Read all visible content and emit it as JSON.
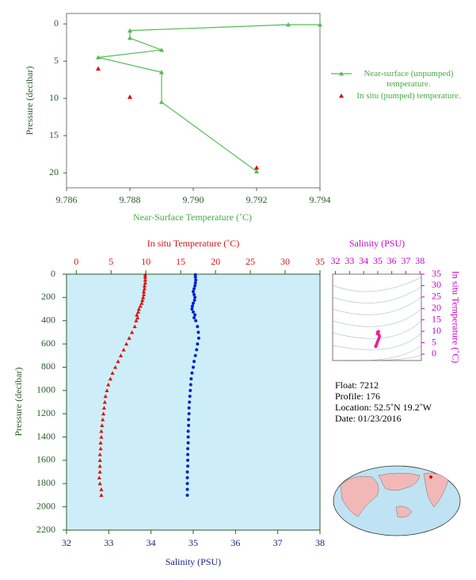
{
  "chart_data": [
    {
      "type": "line",
      "x_label": "Near-Surface Temperature (˚C)",
      "y_label": "Pressure (decibar)",
      "xlim": [
        9.786,
        9.794
      ],
      "xticks": [
        9.786,
        9.788,
        {
          "value": 9.79,
          "label": "9.790"
        },
        9.792,
        9.794
      ],
      "ylim": [
        -1.4,
        22
      ],
      "y_inverted": true,
      "yticks": [
        0,
        5,
        10,
        15,
        20
      ],
      "series": [
        {
          "name": "Near-surface (unpumped) temperature.",
          "color": "#55bb55",
          "line": true,
          "x": [
            9.794,
            9.793,
            9.788,
            9.788,
            9.789,
            9.787,
            9.789,
            9.789,
            9.792
          ],
          "values": [
            0.1,
            0.1,
            0.9,
            1.9,
            3.5,
            4.5,
            6.5,
            10.5,
            19.8
          ]
        },
        {
          "name": "In situ (pumped) temperature.",
          "color": "#dd0000",
          "line": false,
          "x": [
            9.787,
            9.788,
            9.792
          ],
          "values": [
            6.0,
            9.8,
            19.3
          ]
        }
      ]
    },
    {
      "type": "profile",
      "y_label": "Pressure (decibar)",
      "ylim": [
        0,
        2200
      ],
      "y_inverted": true,
      "yticks": [
        0,
        200,
        400,
        600,
        800,
        1000,
        1200,
        1400,
        1600,
        1800,
        2000,
        2200
      ],
      "pressure": [
        5,
        25,
        50,
        75,
        100,
        125,
        150,
        175,
        200,
        225,
        250,
        275,
        300,
        325,
        350,
        375,
        400,
        450,
        500,
        550,
        600,
        650,
        700,
        750,
        800,
        850,
        900,
        950,
        1000,
        1050,
        1100,
        1150,
        1200,
        1250,
        1300,
        1350,
        1400,
        1450,
        1500,
        1550,
        1600,
        1650,
        1700,
        1750,
        1800,
        1850,
        1900
      ],
      "xlim": [
        32,
        38
      ],
      "xticks": [
        32,
        33,
        34,
        35,
        36,
        37,
        38
      ],
      "x2lim": [
        -1.4,
        35
      ],
      "x2ticks": [
        0,
        5,
        10,
        15,
        20,
        25,
        30,
        35
      ],
      "series": [
        {
          "name": "In situ Temperature (˚C)",
          "axis": "x2",
          "color": "#dd1111",
          "marker": "triangle",
          "values": [
            9.9,
            9.9,
            9.9,
            9.9,
            9.8,
            9.8,
            9.7,
            9.7,
            9.6,
            9.5,
            9.4,
            9.2,
            9.0,
            8.9,
            8.7,
            8.8,
            8.6,
            8.4,
            8.0,
            7.6,
            7.2,
            6.8,
            6.4,
            6.0,
            5.6,
            5.2,
            4.9,
            4.6,
            4.4,
            4.2,
            4.1,
            4.0,
            3.9,
            3.8,
            3.7,
            3.6,
            3.6,
            3.5,
            3.5,
            3.4,
            3.4,
            3.4,
            3.4,
            3.3,
            3.4,
            3.6,
            3.6
          ]
        },
        {
          "name": "Salinity (PSU)",
          "axis": "x",
          "color": "#0022cc",
          "marker": "dot",
          "values": [
            35.05,
            35.05,
            35.06,
            35.05,
            35.04,
            35.02,
            35.0,
            35.02,
            35.04,
            35.03,
            35.0,
            34.98,
            34.97,
            35.0,
            35.04,
            35.02,
            35.06,
            35.1,
            35.12,
            35.13,
            35.1,
            35.08,
            35.05,
            35.02,
            35.0,
            34.97,
            34.95,
            34.94,
            34.93,
            34.92,
            34.91,
            34.9,
            34.9,
            34.89,
            34.89,
            34.88,
            34.88,
            34.88,
            34.87,
            34.87,
            34.87,
            34.87,
            34.86,
            34.86,
            34.86,
            34.86,
            34.86
          ]
        }
      ]
    },
    {
      "type": "ts",
      "x_label": "Salinity (PSU)",
      "y_label": "In situ Temperature (˚C)",
      "color": "#ee2299",
      "xlim": [
        31.8,
        38.1
      ],
      "xticks": [
        32,
        33,
        34,
        35,
        36,
        37,
        38
      ],
      "ylim": [
        -2.8,
        35
      ],
      "yticks": [
        0,
        5,
        10,
        15,
        20,
        25,
        30,
        35
      ]
    }
  ],
  "info": {
    "float": "Float:  7212",
    "profile": "Profile:  176",
    "location": "Location:  52.5˚N  19.2˚W",
    "date": "Date:  01/23/2016"
  }
}
